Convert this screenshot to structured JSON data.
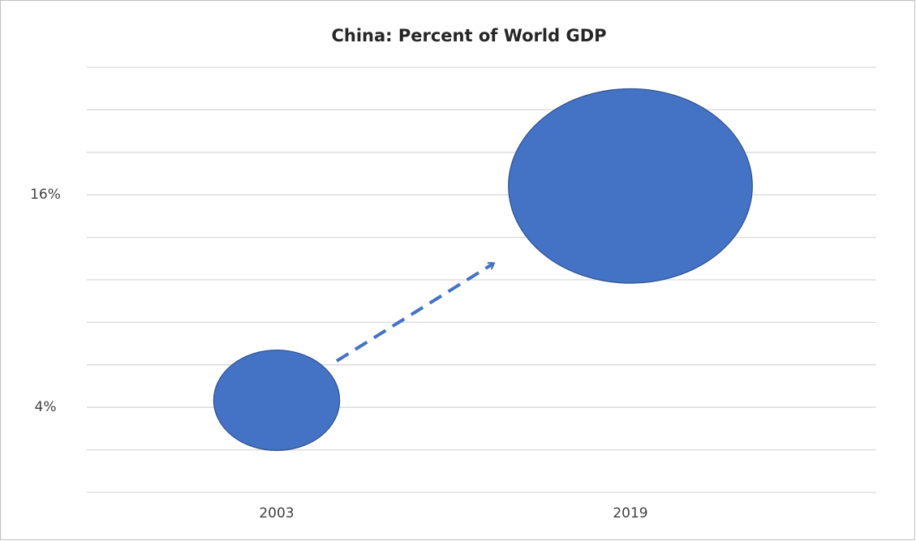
{
  "chart_data": {
    "type": "bubble",
    "title": "China: Percent of World GDP",
    "categories": [
      "2003",
      "2019"
    ],
    "values": [
      4.4,
      16.5
    ],
    "color": "#4472c4",
    "ylim": [
      -0.8,
      23.2
    ],
    "yticks": [
      {
        "value": 4,
        "label": "4%"
      },
      {
        "value": 16,
        "label": "16%"
      }
    ]
  }
}
